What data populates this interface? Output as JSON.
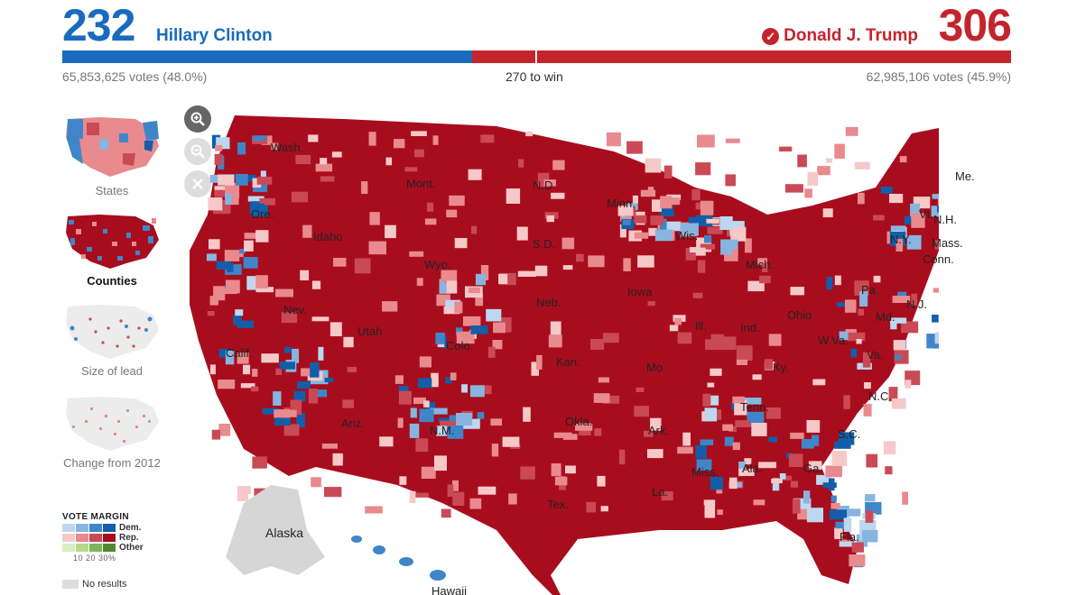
{
  "header": {
    "dem_count": "232",
    "dem_name": "Hillary Clinton",
    "dem_votes": "65,853,625 votes (48.0%)",
    "rep_count": "306",
    "rep_name": "Donald J. Trump",
    "rep_votes": "62,985,106 votes (45.9%)",
    "to_win": "270 to win",
    "dem_share_of_bar": 0.432,
    "winner_mark_icon": "check-circle-icon"
  },
  "colors": {
    "dem": "#1a6bbd",
    "rep": "#c4242c",
    "dem_scale": [
      "#bcd7ef",
      "#87b5e0",
      "#3f86c8",
      "#135ea8"
    ],
    "rep_scale": [
      "#f6c9c8",
      "#e88a8e",
      "#c94a55",
      "#a80d1e"
    ],
    "other_scale": [
      "#dcedc3",
      "#b5d98d",
      "#7fb45a",
      "#4d8a2e"
    ],
    "no_results": "#dddddd"
  },
  "views": [
    {
      "label": "States",
      "active": false
    },
    {
      "label": "Counties",
      "active": true
    },
    {
      "label": "Size of lead",
      "active": false
    },
    {
      "label": "Change from 2012",
      "active": false
    }
  ],
  "zoom": {
    "zoom_in_icon": "zoom-in-icon",
    "zoom_out_icon": "zoom-out-icon",
    "reset_icon": "close-icon"
  },
  "legend": {
    "title": "VOTE MARGIN",
    "dem_label": "Dem.",
    "rep_label": "Rep.",
    "other_label": "Other",
    "ticks": "10  20  30%",
    "no_results": "No results"
  },
  "map": {
    "state_labels": [
      "Wash.",
      "Mont.",
      "N.D.",
      "Minn.",
      "Ore.",
      "Idaho",
      "S.D.",
      "Wyo.",
      "Wis.",
      "Mich.",
      "N.Y.",
      "Vt.",
      "N.H.",
      "Me.",
      "Mass.",
      "Conn.",
      "Pa.",
      "N.J.",
      "Md.",
      "Neb.",
      "Iowa",
      "Ill.",
      "Ind.",
      "Ohio",
      "W.Va.",
      "Va.",
      "Nev.",
      "Utah",
      "Colo.",
      "Calif.",
      "Kan.",
      "Mo.",
      "Ky.",
      "N.C.",
      "Tenn.",
      "Okla.",
      "Ariz.",
      "N.M.",
      "Ark.",
      "S.C.",
      "Miss.",
      "Ala.",
      "Ga.",
      "La.",
      "Tex.",
      "Fla."
    ],
    "alaska": "Alaska",
    "hawaii": "Hawaii"
  }
}
